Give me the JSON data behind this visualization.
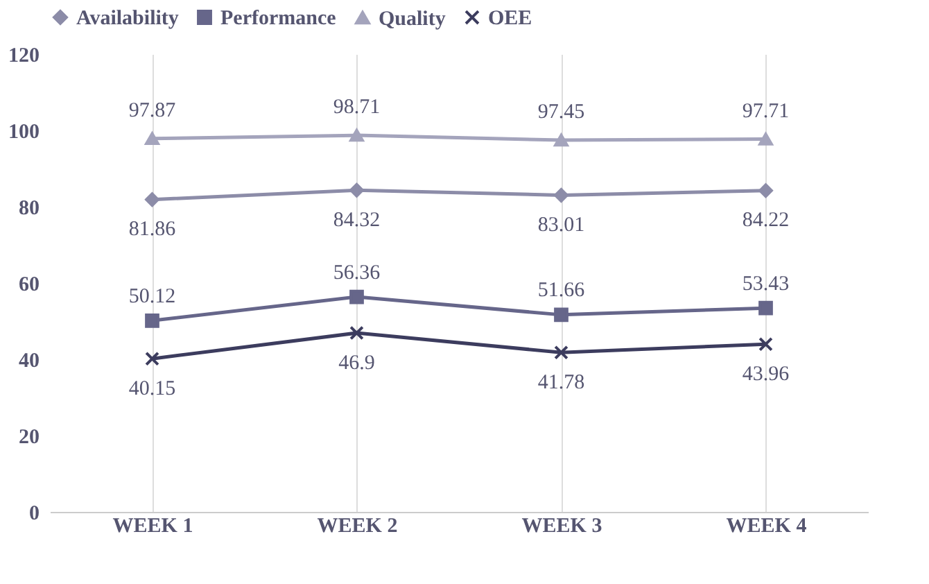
{
  "chart_data": {
    "type": "line",
    "categories": [
      "WEEK 1",
      "WEEK 2",
      "WEEK 3",
      "WEEK 4"
    ],
    "series": [
      {
        "name": "Availability",
        "color": "#8c8ca8",
        "marker": "diamond",
        "values": [
          81.86,
          84.32,
          83.01,
          84.22
        ]
      },
      {
        "name": "Performance",
        "color": "#66668a",
        "marker": "square",
        "values": [
          50.12,
          56.36,
          51.66,
          53.43
        ]
      },
      {
        "name": "Quality",
        "color": "#a4a4bc",
        "marker": "triangle",
        "values": [
          97.87,
          98.71,
          97.45,
          97.71
        ]
      },
      {
        "name": "OEE",
        "color": "#3c3c5e",
        "marker": "cross",
        "values": [
          40.15,
          46.9,
          41.78,
          43.96
        ]
      }
    ],
    "ylim": [
      0,
      120
    ],
    "yticks": [
      0,
      20,
      40,
      60,
      80,
      100,
      120
    ],
    "grid": "x",
    "legend": "top",
    "data_labels": true
  }
}
